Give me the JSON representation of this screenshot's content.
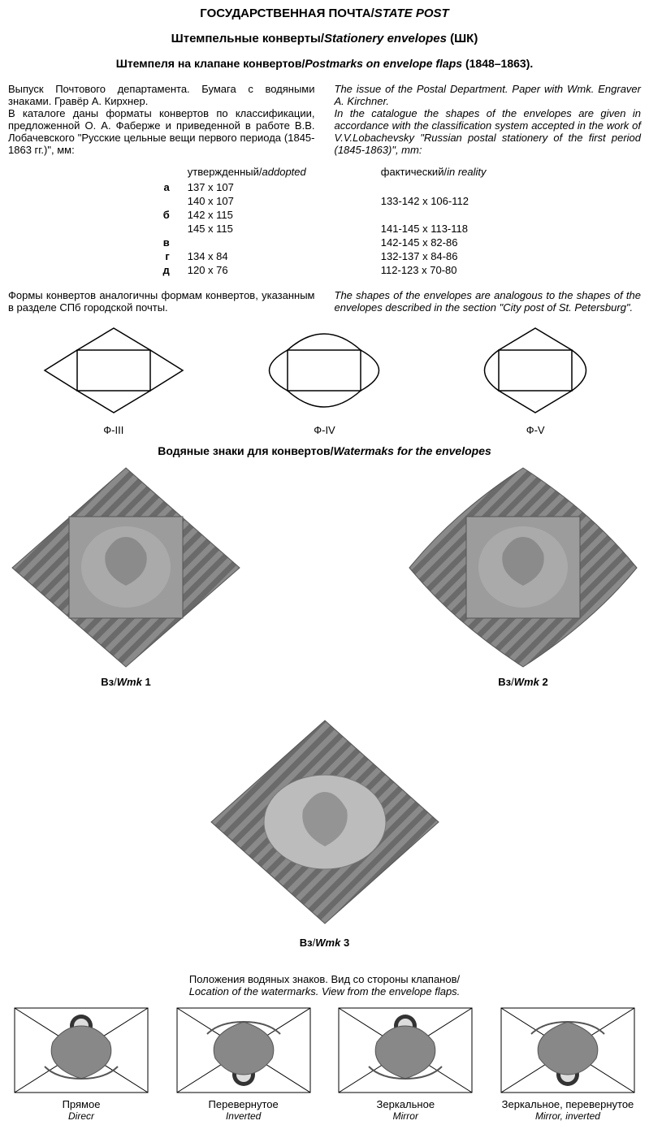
{
  "title": {
    "ru": "ГОСУДАРСТВЕННАЯ ПОЧТА",
    "en": "STATE POST",
    "sep": "/"
  },
  "subtitle": {
    "ru": "Штемпельные конверты",
    "en": "Stationery envelopes",
    "code": "(ШК)",
    "sep": "/"
  },
  "sub2": {
    "ru": "Штемпеля на клапане конвертов",
    "en": "Postmarks on envelope flaps",
    "years": "(1848–1863).",
    "sep": "/"
  },
  "intro": {
    "ru1": "Выпуск Почтового департамента. Бумага с водяными знаками. Гравёр А. Кирхнер.",
    "ru2": "В каталоге даны форматы конвертов по классификации, предложенной О. А. Фаберже и приведенной в работе В.В. Лобачевского \"Русские цельные вещи первого периода (1845-1863 гг.)\", мм:",
    "en1": "The issue of the Postal Department. Paper with Wmk. Engraver A. Kirchner.",
    "en2": "In the catalogue the shapes of the envelopes are given in accordance with the classification system accepted in the work of V.V.Lobachevsky \"Russian postal stationery of the first period (1845-1863)\", mm:"
  },
  "sizeHeader": {
    "approved_ru": "утвержденный",
    "approved_en": "addopted",
    "actual_ru": "фактический",
    "actual_en": "in reality",
    "sep": "/"
  },
  "sizes": [
    {
      "lbl": "а",
      "approved": "137 x 107",
      "actual": ""
    },
    {
      "lbl": "",
      "approved": "140 x 107",
      "actual": "133-142 x 106-112"
    },
    {
      "lbl": "б",
      "approved": "142 x 115",
      "actual": ""
    },
    {
      "lbl": "",
      "approved": "145 x 115",
      "actual": "141-145 x 113-118"
    },
    {
      "lbl": "в",
      "approved": "",
      "actual": "142-145 x 82-86"
    },
    {
      "lbl": "г",
      "approved": "134 x 84",
      "actual": "132-137 x 84-86"
    },
    {
      "lbl": "д",
      "approved": "120 x 76",
      "actual": "112-123 x 70-80"
    }
  ],
  "analog": {
    "ru": "Формы конвертов аналогичны формам конвертов, указанным в разделе СПб городской почты.",
    "en": "The shapes of the envelopes are analogous to the shapes of the envelopes described in the section \"City post of St. Petersburg\"."
  },
  "shapes": [
    {
      "label": "Ф-III"
    },
    {
      "label": "Ф-IV"
    },
    {
      "label": "Ф-V"
    }
  ],
  "wmkTitle": {
    "ru": "Водяные знаки для конвертов",
    "en": "Watermaks for the envelopes",
    "sep": "/"
  },
  "wmk": [
    {
      "ru": "Вз",
      "en": "Wmk",
      "num": "1",
      "sep": "/"
    },
    {
      "ru": "Вз",
      "en": "Wmk",
      "num": "2",
      "sep": "/"
    },
    {
      "ru": "Вз",
      "en": "Wmk",
      "num": "3",
      "sep": "/"
    }
  ],
  "locTitle": {
    "ru": "Положения водяных знаков. Вид со стороны клапанов",
    "en": "Location of the watermarks. View from the envelope flaps.",
    "sep": "/"
  },
  "loc": [
    {
      "ru": "Прямое",
      "en": "Direcr"
    },
    {
      "ru": "Перевернутое",
      "en": "Inverted"
    },
    {
      "ru": "Зеркальное",
      "en": "Mirror"
    },
    {
      "ru": "Зеркальное, перевернутое",
      "en": "Mirror, inverted"
    }
  ],
  "colors": {
    "stroke": "#000000",
    "wmkFill": "#888888",
    "wmkPattern": "#6a6a6a",
    "wmkLight": "#bdbdbd"
  }
}
